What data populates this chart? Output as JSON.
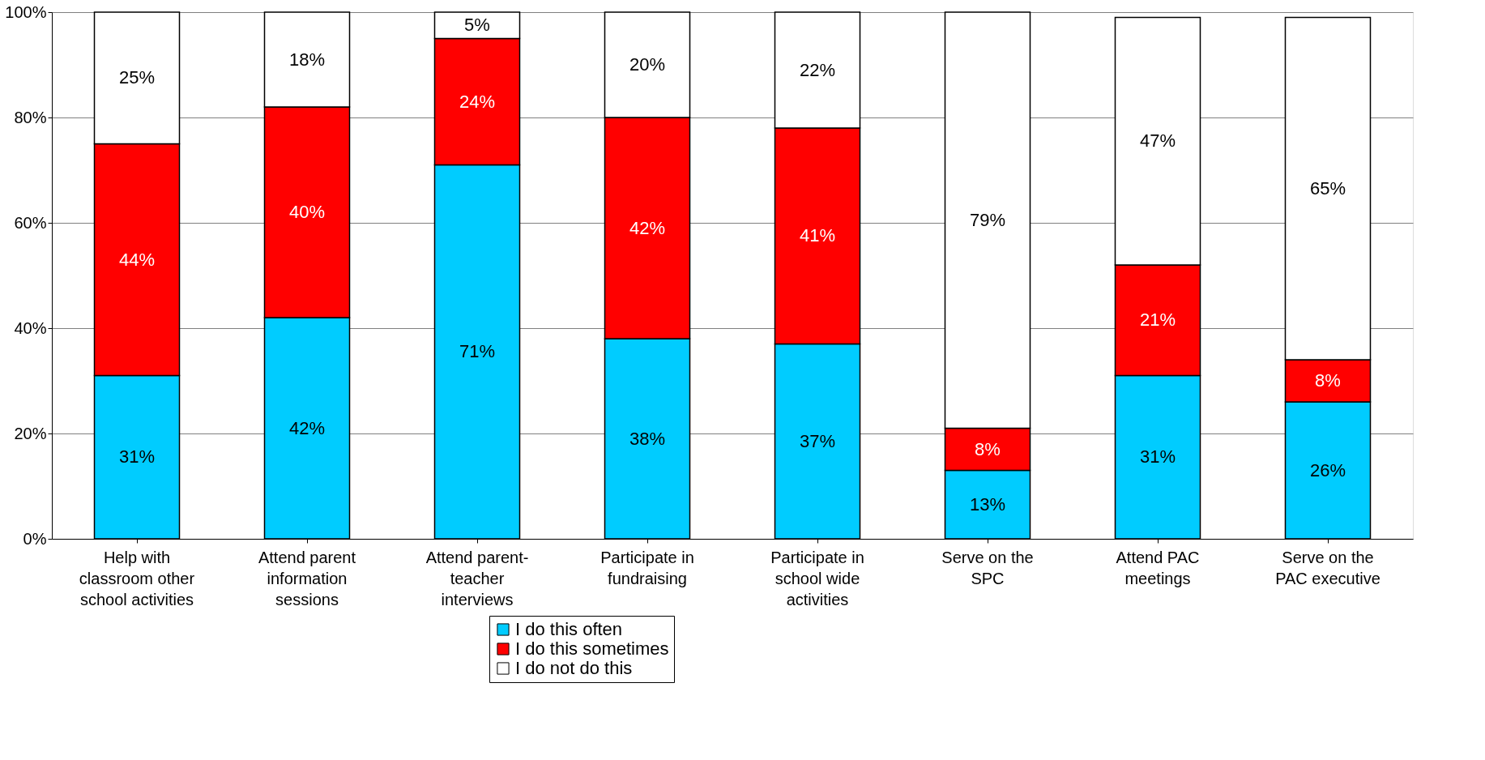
{
  "chart_data": {
    "type": "bar",
    "stacked": true,
    "grid": "y",
    "legend": "bottom",
    "categories": [
      "Help with\nclassroom other\nschool activities",
      "Attend parent\ninformation\nsessions",
      "Attend parent-\nteacher\ninterviews",
      "Participate in\nfundraising",
      "Participate in\nschool wide\nactivities",
      "Serve on the\nSPC",
      "Attend PAC\nmeetings",
      "Serve on the\nPAC executive"
    ],
    "series": [
      {
        "name": "I do this often",
        "color": "#00ccff",
        "values": [
          31,
          42,
          71,
          38,
          37,
          13,
          31,
          26
        ],
        "value_labels": [
          "31%",
          "42%",
          "71%",
          "38%",
          "37%",
          "13%",
          "31%",
          "26%"
        ]
      },
      {
        "name": "I do this sometimes",
        "color": "#ff0000",
        "values": [
          44,
          40,
          24,
          42,
          41,
          8,
          21,
          8
        ],
        "value_labels": [
          "44%",
          "40%",
          "24%",
          "42%",
          "41%",
          "8%",
          "21%",
          "8%"
        ]
      },
      {
        "name": "I do not do this",
        "color": "#ffffff",
        "values": [
          25,
          18,
          5,
          20,
          22,
          79,
          47,
          65
        ],
        "value_labels": [
          "25%",
          "18%",
          "5%",
          "20%",
          "22%",
          "79%",
          "47%",
          "65%"
        ]
      }
    ],
    "ylim": [
      0,
      100
    ],
    "yticks": [
      {
        "value": 0,
        "label": "0%"
      },
      {
        "value": 20,
        "label": "20%"
      },
      {
        "value": 40,
        "label": "40%"
      },
      {
        "value": 60,
        "label": "60%"
      },
      {
        "value": 80,
        "label": "80%"
      },
      {
        "value": 100,
        "label": "100%"
      }
    ]
  }
}
